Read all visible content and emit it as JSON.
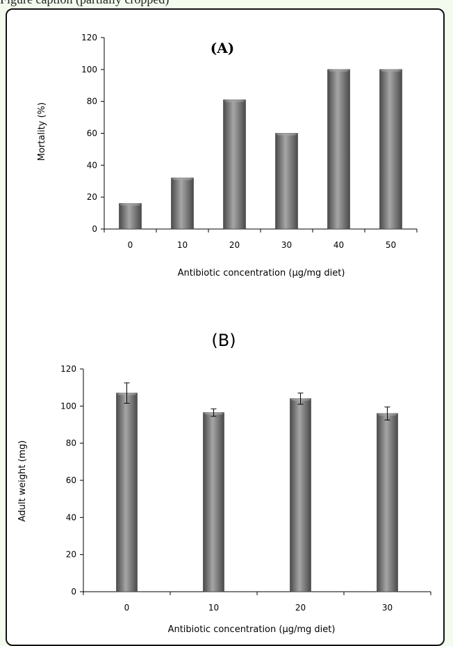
{
  "caption": {
    "text": "Figure caption (partially cropped)"
  },
  "colors": {
    "bar_dark": "#4a4a4a",
    "bar_mid": "#7a7a7a",
    "bar_light": "#a6a6a6",
    "axis": "#000000",
    "frame_bg": "#f2fbee"
  },
  "chart_data": [
    {
      "type": "bar",
      "panel": "A",
      "title": "(A)",
      "xlabel": "Antibiotic concentration (µg/mg diet)",
      "ylabel": "Mortality (%)",
      "categories": [
        "0",
        "10",
        "20",
        "30",
        "40",
        "50"
      ],
      "values": [
        16,
        32,
        81,
        60,
        100,
        100
      ],
      "ylim": [
        0,
        120
      ],
      "yticks": [
        0,
        20,
        40,
        60,
        80,
        100,
        120
      ],
      "grid": false
    },
    {
      "type": "bar",
      "panel": "B",
      "title": "(B)",
      "xlabel": "Antibiotic concentration (µg/mg diet)",
      "ylabel": "Adult weight (mg)",
      "categories": [
        "0",
        "10",
        "20",
        "30"
      ],
      "values": [
        107,
        96.5,
        104,
        96
      ],
      "errors": [
        5.5,
        2,
        3,
        3.5
      ],
      "ylim": [
        0,
        120
      ],
      "yticks": [
        0,
        20,
        40,
        60,
        80,
        100,
        120
      ],
      "grid": false
    }
  ]
}
